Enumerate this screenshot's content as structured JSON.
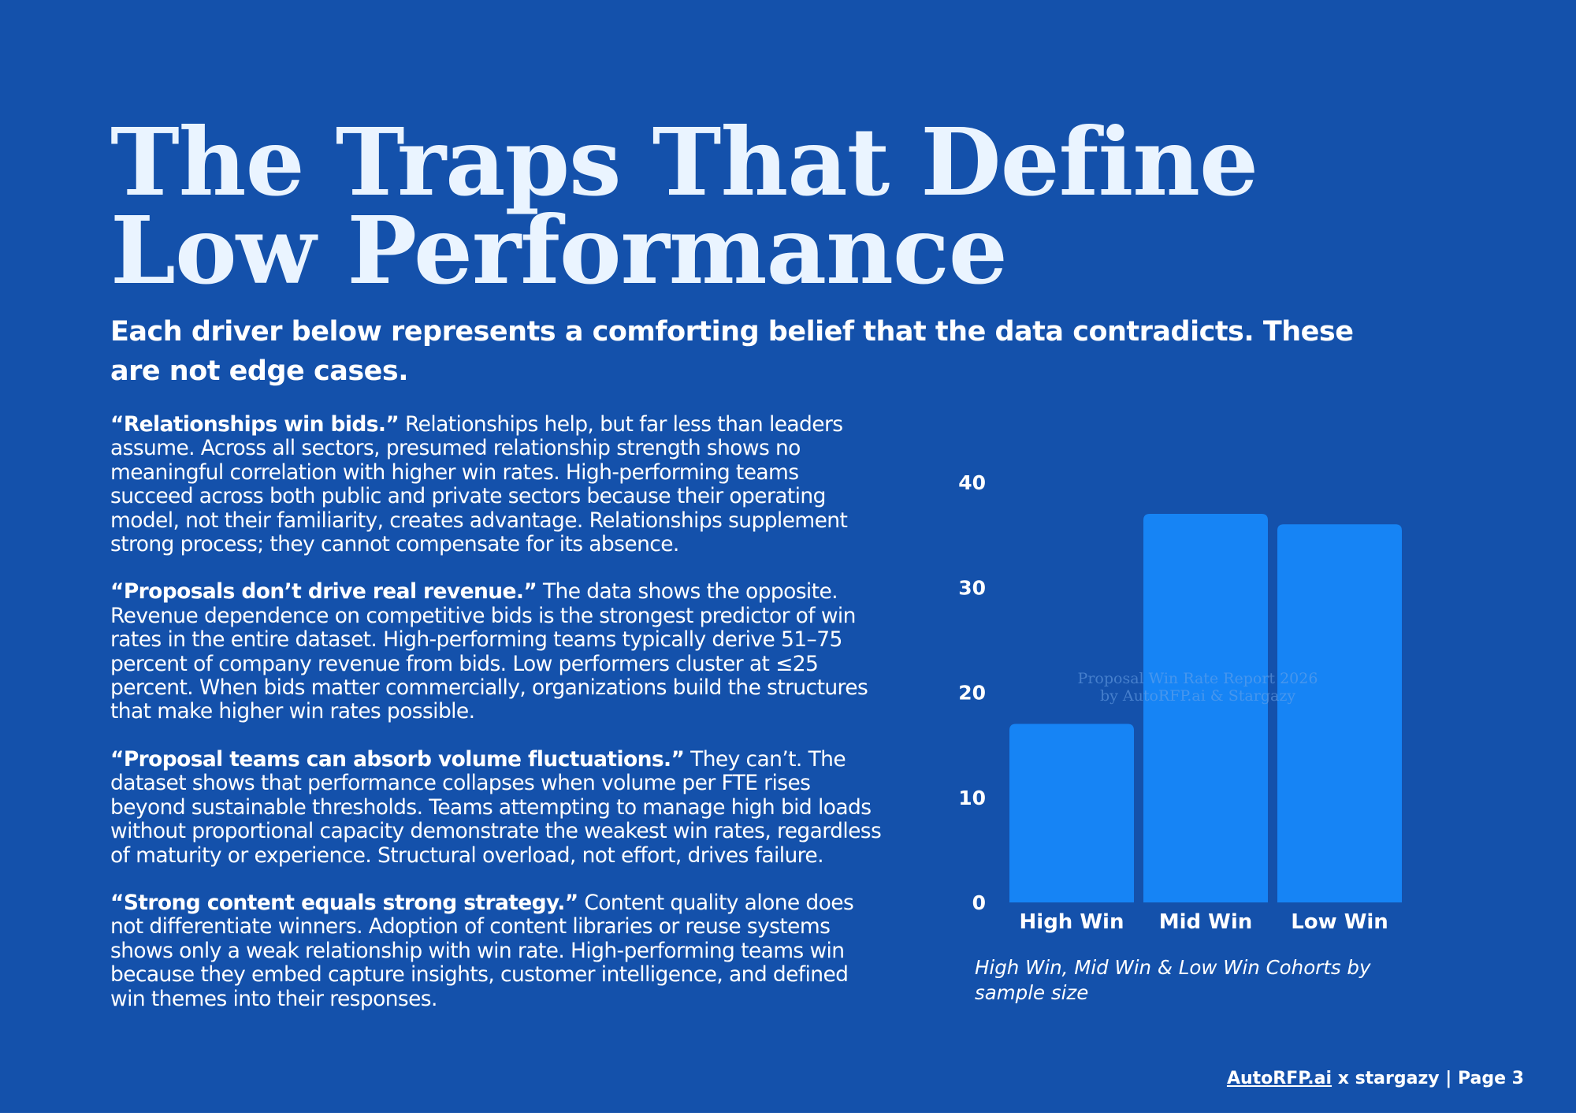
{
  "page": {
    "title_line1": "The Traps That Define",
    "title_line2": "Low Performance",
    "subtitle": "Each driver below represents a comforting belief that the data contradicts. These are not edge cases."
  },
  "paragraphs": [
    {
      "lead": "“Relationships win bids.”",
      "text": " Relationships help, but far less than leaders assume. Across all sectors, presumed relationship strength shows no meaningful correlation with higher win rates. High-performing teams succeed across both public and private sectors because their operating model, not their familiarity, creates advantage. Relationships supplement strong process; they cannot compensate for its absence."
    },
    {
      "lead": "“Proposals don’t drive real revenue.”",
      "text": " The data shows the opposite. Revenue dependence on competitive bids is the strongest predictor of win rates in the entire dataset. High-performing teams typically derive 51–75 percent of company revenue from bids. Low performers cluster at ≤25 percent. When bids matter commercially, organizations build the structures that make higher win rates possible."
    },
    {
      "lead": "“Proposal teams can absorb volume fluctuations.”",
      "text": " They can’t. The dataset shows that performance collapses when volume per FTE rises beyond sustainable thresholds. Teams attempting to manage high bid loads without proportional capacity demonstrate the weakest win rates, regardless of maturity or experience. Structural overload, not effort, drives failure."
    },
    {
      "lead": "“Strong content equals strong strategy.”",
      "text": " Content quality alone does not differentiate winners. Adoption of content libraries or reuse systems shows only a weak relationship with win rate. High-performing teams win because they embed capture insights, customer intelligence, and defined win themes into their responses."
    }
  ],
  "chart_data": {
    "type": "bar",
    "categories": [
      "High Win",
      "Mid Win",
      "Low Win"
    ],
    "values": [
      17,
      37,
      36
    ],
    "yticks": [
      0,
      10,
      20,
      30,
      40
    ],
    "ylim": [
      0,
      40
    ],
    "title": "",
    "xlabel": "",
    "ylabel": "",
    "grid": false,
    "bar_color": "#1684F5",
    "watermark_line1": "Proposal Win Rate Report 2026",
    "watermark_line2": "by AutoRFP.ai & Stargazy"
  },
  "caption": "High Win, Mid Win & Low Win Cohorts by sample size",
  "footer": {
    "brand": "AutoRFP.ai",
    "rest": " x stargazy | Page 3"
  },
  "colors": {
    "background": "#1451AB",
    "title": "#EAF4FF",
    "bar": "#1684F5"
  }
}
